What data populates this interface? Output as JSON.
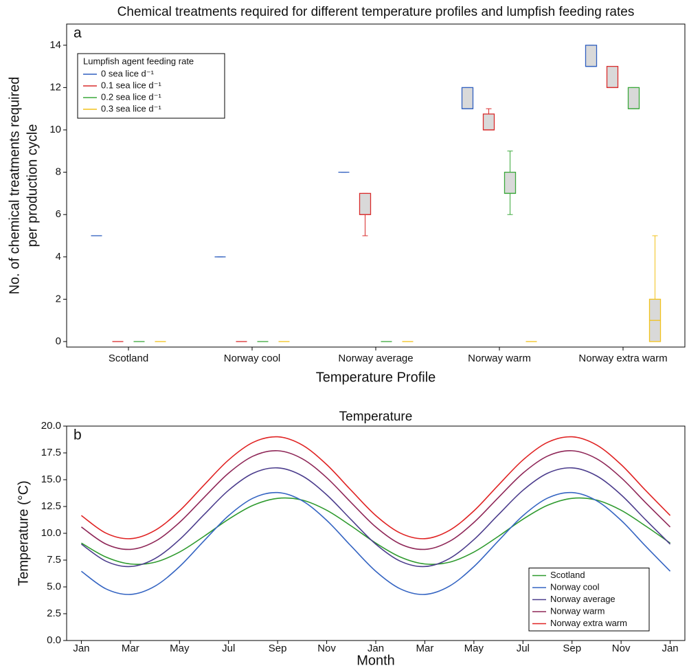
{
  "chart_data": [
    {
      "type": "box",
      "title": "Chemical treatments required for different temperature profiles and lumpfish feeding rates",
      "panel_label": "a",
      "xlabel": "Temperature Profile",
      "ylabel": [
        "No. of chemical treatments required",
        "per production cycle"
      ],
      "categories": [
        "Scotland",
        "Norway cool",
        "Norway average",
        "Norway warm",
        "Norway extra warm"
      ],
      "ylim": [
        -0.26,
        15
      ],
      "yticks": [
        0,
        2,
        4,
        6,
        8,
        10,
        12,
        14
      ],
      "legend_title": "Lumpfish agent feeding rate",
      "legend": "upper left",
      "series": [
        {
          "name": "0 sea lice d⁻¹",
          "color": "#2f5fbf",
          "min": [
            5,
            4,
            8,
            11,
            13
          ],
          "q1": [
            5,
            4,
            8,
            11,
            13
          ],
          "median": [
            5,
            4,
            8,
            11,
            13
          ],
          "q3": [
            5,
            4,
            8,
            12,
            14
          ],
          "max": [
            5,
            4,
            8,
            12,
            14
          ]
        },
        {
          "name": "0.1 sea lice d⁻¹",
          "color": "#d92b2b",
          "min": [
            0,
            0,
            5,
            10,
            12
          ],
          "q1": [
            0,
            0,
            6,
            10,
            12
          ],
          "median": [
            0,
            0,
            6,
            10,
            12
          ],
          "q3": [
            0,
            0,
            7,
            10.75,
            13
          ],
          "max": [
            0,
            0,
            7,
            11,
            13
          ]
        },
        {
          "name": "0.2 sea lice d⁻¹",
          "color": "#3aa83a",
          "min": [
            0,
            0,
            0,
            6,
            11
          ],
          "q1": [
            0,
            0,
            0,
            7,
            11
          ],
          "median": [
            0,
            0,
            0,
            7,
            11
          ],
          "q3": [
            0,
            0,
            0,
            8,
            12
          ],
          "max": [
            0,
            0,
            0,
            9,
            12
          ]
        },
        {
          "name": "0.3 sea lice d⁻¹",
          "color": "#f2c21b",
          "min": [
            0,
            0,
            0,
            0,
            0
          ],
          "q1": [
            0,
            0,
            0,
            0,
            0
          ],
          "median": [
            0,
            0,
            0,
            0,
            1
          ],
          "q3": [
            0,
            0,
            0,
            0,
            2
          ],
          "max": [
            0,
            0,
            0,
            0,
            5
          ]
        }
      ]
    },
    {
      "type": "line",
      "title": "Temperature",
      "panel_label": "b",
      "xlabel": "Month",
      "ylabel": [
        "Temperature (°C)"
      ],
      "x": [
        0,
        1,
        2,
        3,
        4,
        5,
        6,
        7,
        8,
        9,
        10,
        11,
        12,
        13,
        14,
        15,
        16,
        17,
        18,
        19,
        20,
        21,
        22,
        23,
        24
      ],
      "xlim": [
        -0.6,
        24.6
      ],
      "xticks": [
        {
          "value": 0,
          "label": "Jan"
        },
        {
          "value": 2,
          "label": "Mar"
        },
        {
          "value": 4,
          "label": "May"
        },
        {
          "value": 6,
          "label": "Jul"
        },
        {
          "value": 8,
          "label": "Sep"
        },
        {
          "value": 10,
          "label": "Nov"
        },
        {
          "value": 12,
          "label": "Jan"
        },
        {
          "value": 14,
          "label": "Mar"
        },
        {
          "value": 16,
          "label": "May"
        },
        {
          "value": 18,
          "label": "Jul"
        },
        {
          "value": 20,
          "label": "Sep"
        },
        {
          "value": 22,
          "label": "Nov"
        },
        {
          "value": 24,
          "label": "Jan"
        }
      ],
      "ylim": [
        0,
        20
      ],
      "yticks": [
        {
          "value": 0,
          "label": "0.0"
        },
        2.5,
        {
          "value": 5,
          "label": "5.0"
        },
        7.5,
        {
          "value": 10,
          "label": "10.0"
        },
        12.5,
        {
          "value": 15,
          "label": "15.0"
        },
        17.5,
        {
          "value": 20,
          "label": "20.0"
        }
      ],
      "legend": "lower right",
      "series": [
        {
          "name": "Scotland",
          "color": "#2e9a2e",
          "values": [
            9.09,
            7.79,
            7.14,
            7.3,
            8.25,
            9.72,
            11.31,
            12.61,
            13.26,
            13.1,
            12.15,
            10.68,
            9.09,
            7.79,
            7.14,
            7.3,
            8.25,
            9.72,
            11.31,
            12.61,
            13.26,
            13.1,
            12.15,
            10.68,
            9.09
          ]
        },
        {
          "name": "Norway cool",
          "color": "#3464c2",
          "values": [
            6.46,
            4.82,
            4.3,
            5.07,
            6.89,
            9.3,
            11.64,
            13.28,
            13.8,
            13.04,
            11.21,
            8.8,
            6.46,
            4.82,
            4.3,
            5.07,
            6.89,
            9.3,
            11.64,
            13.28,
            13.8,
            13.04,
            11.21,
            8.8,
            6.46
          ]
        },
        {
          "name": "Norway average",
          "color": "#4b3c8c",
          "values": [
            8.99,
            7.4,
            6.9,
            7.64,
            9.41,
            11.74,
            14.01,
            15.6,
            16.1,
            15.36,
            13.59,
            11.26,
            8.99,
            7.4,
            6.9,
            7.64,
            9.41,
            11.74,
            14.01,
            15.6,
            16.1,
            15.36,
            13.59,
            11.26,
            8.99
          ]
        },
        {
          "name": "Norway warm",
          "color": "#8e2657",
          "values": [
            10.59,
            9.0,
            8.5,
            9.24,
            11.01,
            13.34,
            15.61,
            17.2,
            17.7,
            16.96,
            15.19,
            12.86,
            10.59,
            9.0,
            8.5,
            9.24,
            11.01,
            13.34,
            15.61,
            17.2,
            17.7,
            16.96,
            15.19,
            12.86,
            10.59
          ]
        },
        {
          "name": "Norway extra warm",
          "color": "#e02222",
          "values": [
            11.66,
            10.02,
            9.5,
            10.27,
            12.09,
            14.5,
            16.84,
            18.48,
            19.0,
            18.24,
            16.41,
            14.0,
            11.66,
            10.02,
            9.5,
            10.27,
            12.09,
            14.5,
            16.84,
            18.48,
            19.0,
            18.24,
            16.41,
            14.0,
            11.66
          ]
        }
      ]
    }
  ]
}
